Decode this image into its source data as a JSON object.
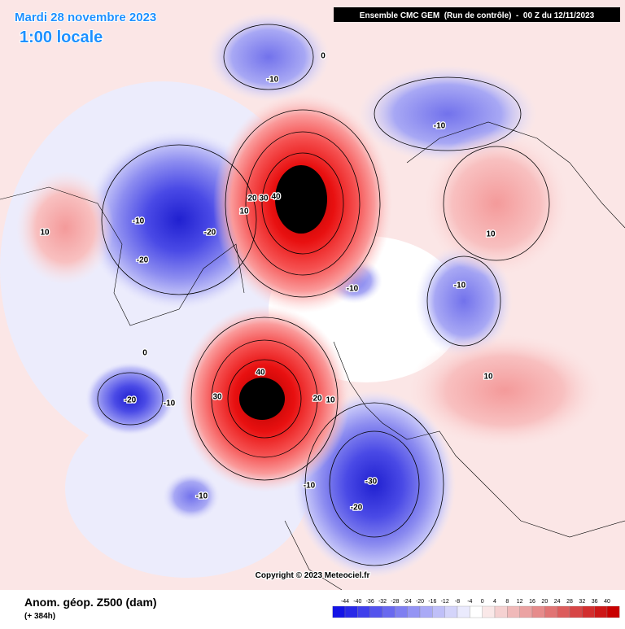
{
  "header": {
    "date": "Mardi 28 novembre 2023",
    "time": "1:00 locale",
    "model": "Ensemble CMC GEM  (Run de contrôle)  -  00 Z du 12/11/2023"
  },
  "footer": {
    "field": "Anom. géop. Z500 (dam)",
    "lead": "(+ 384h)",
    "copyright": "Copyright © 2023 Meteociel.fr"
  },
  "colorbar": {
    "labels": [
      -44,
      -40,
      -36,
      -32,
      -28,
      -24,
      -20,
      -16,
      -12,
      -8,
      -4,
      0,
      4,
      8,
      12,
      16,
      20,
      24,
      28,
      32,
      36,
      40
    ]
  },
  "contour_labels": [
    0,
    -10,
    -10,
    20,
    30,
    40,
    10,
    -10,
    -20,
    -20,
    10,
    10,
    -10,
    -10,
    0,
    40,
    30,
    20,
    10,
    -20,
    -10,
    10,
    -10,
    -30,
    -20,
    -10
  ]
}
